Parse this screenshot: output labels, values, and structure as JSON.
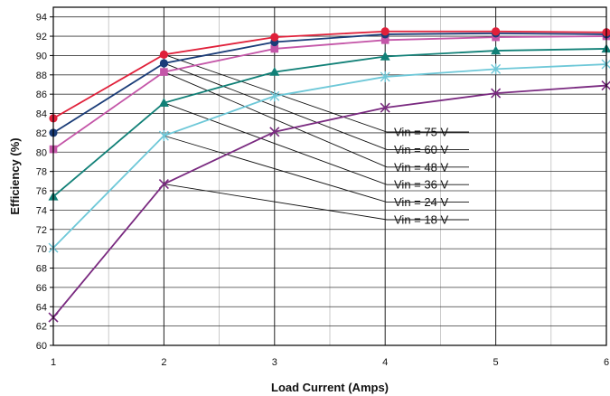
{
  "chart_data": {
    "type": "line",
    "xlabel": "Load Current (Amps)",
    "ylabel": "Efficiency (%)",
    "xlim": [
      1,
      6
    ],
    "ylim": [
      60,
      95
    ],
    "x_ticks": [
      "1",
      "2",
      "3",
      "4",
      "5",
      "6"
    ],
    "y_ticks": [
      "60",
      "62",
      "64",
      "66",
      "68",
      "70",
      "72",
      "74",
      "76",
      "78",
      "80",
      "82",
      "84",
      "86",
      "88",
      "90",
      "92",
      "94"
    ],
    "grid": true,
    "x": [
      1,
      2,
      3,
      4,
      5,
      6
    ],
    "series": [
      {
        "name": "Vin = 75 V",
        "color": "#e0203a",
        "marker": "circle",
        "values": [
          83.5,
          90.1,
          91.9,
          92.5,
          92.5,
          92.4
        ]
      },
      {
        "name": "Vin = 60 V",
        "color": "#1a3c78",
        "marker": "circle",
        "values": [
          82.0,
          89.2,
          91.4,
          92.2,
          92.3,
          92.2
        ]
      },
      {
        "name": "Vin = 48 V",
        "color": "#c456a8",
        "marker": "square",
        "values": [
          80.3,
          88.3,
          90.7,
          91.6,
          91.9,
          92.0
        ]
      },
      {
        "name": "Vin = 36 V",
        "color": "#118077",
        "marker": "triangle",
        "values": [
          75.4,
          85.1,
          88.3,
          89.9,
          90.5,
          90.7
        ]
      },
      {
        "name": "Vin = 24 V",
        "color": "#6ec8d8",
        "marker": "star",
        "values": [
          70.1,
          81.7,
          85.8,
          87.8,
          88.6,
          89.1
        ]
      },
      {
        "name": "Vin = 18 V",
        "color": "#7a2a80",
        "marker": "x",
        "values": [
          62.9,
          76.7,
          82.1,
          84.6,
          86.1,
          86.9
        ]
      }
    ],
    "legend_placement": "center-right, labels with leader lines to curves at x=2"
  }
}
